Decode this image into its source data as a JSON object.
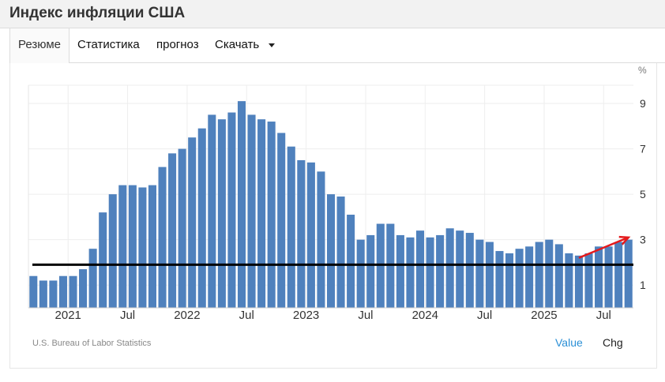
{
  "page": {
    "title": "Индекс инфляции США"
  },
  "tabs": [
    {
      "label": "Резюме",
      "active": true
    },
    {
      "label": "Статистика",
      "active": false
    },
    {
      "label": "прогноз",
      "active": false
    },
    {
      "label": "Скачать",
      "active": false,
      "dropdown": true
    }
  ],
  "footer": {
    "source": "U.S. Bureau of Labor Statistics",
    "value_label": "Value",
    "chg_label": "Chg"
  },
  "colors": {
    "bar": "#4f81bd",
    "reference_line": "#000000",
    "annotation_arrow": "#e41a1c",
    "value_toggle": "#2a8fd6"
  },
  "chart_data": {
    "type": "bar",
    "unit_label": "%",
    "y_axis_side": "right",
    "ylim": [
      0,
      9.8
    ],
    "y_ticks": [
      1,
      3,
      5,
      7,
      9
    ],
    "grid": true,
    "x_tick_labels": [
      {
        "label": "2021",
        "at": "2021-01"
      },
      {
        "label": "Jul",
        "at": "2021-07"
      },
      {
        "label": "2022",
        "at": "2022-01"
      },
      {
        "label": "Jul",
        "at": "2022-07"
      },
      {
        "label": "2023",
        "at": "2023-01"
      },
      {
        "label": "Jul",
        "at": "2023-07"
      },
      {
        "label": "2024",
        "at": "2024-01"
      },
      {
        "label": "Jul",
        "at": "2024-07"
      },
      {
        "label": "2025",
        "at": "2025-01"
      },
      {
        "label": "Jul",
        "at": "2025-07"
      }
    ],
    "categories": [
      "2020-09",
      "2020-10",
      "2020-11",
      "2020-12",
      "2021-01",
      "2021-02",
      "2021-03",
      "2021-04",
      "2021-05",
      "2021-06",
      "2021-07",
      "2021-08",
      "2021-09",
      "2021-10",
      "2021-11",
      "2021-12",
      "2022-01",
      "2022-02",
      "2022-03",
      "2022-04",
      "2022-05",
      "2022-06",
      "2022-07",
      "2022-08",
      "2022-09",
      "2022-10",
      "2022-11",
      "2022-12",
      "2023-01",
      "2023-02",
      "2023-03",
      "2023-04",
      "2023-05",
      "2023-06",
      "2023-07",
      "2023-08",
      "2023-09",
      "2023-10",
      "2023-11",
      "2023-12",
      "2024-01",
      "2024-02",
      "2024-03",
      "2024-04",
      "2024-05",
      "2024-06",
      "2024-07",
      "2024-08",
      "2024-09",
      "2024-10",
      "2024-11",
      "2024-12",
      "2025-01",
      "2025-02",
      "2025-03",
      "2025-04",
      "2025-05",
      "2025-06",
      "2025-07",
      "2025-08",
      "2025-09"
    ],
    "values": [
      1.4,
      1.2,
      1.2,
      1.4,
      1.4,
      1.7,
      2.6,
      4.2,
      5.0,
      5.4,
      5.4,
      5.3,
      5.4,
      6.2,
      6.8,
      7.0,
      7.5,
      7.9,
      8.5,
      8.3,
      8.6,
      9.1,
      8.5,
      8.3,
      8.2,
      7.7,
      7.1,
      6.5,
      6.4,
      6.0,
      5.0,
      4.9,
      4.1,
      3.0,
      3.2,
      3.7,
      3.7,
      3.2,
      3.1,
      3.4,
      3.1,
      3.2,
      3.5,
      3.4,
      3.3,
      3.0,
      2.9,
      2.5,
      2.4,
      2.6,
      2.7,
      2.9,
      3.0,
      2.8,
      2.4,
      2.3,
      2.4,
      2.7,
      2.7,
      2.9,
      3.0
    ],
    "reference_line": 1.9,
    "annotation": {
      "type": "arrow",
      "from": {
        "x": "2025-04",
        "y": 2.2
      },
      "to": {
        "x": "2025-09",
        "y": 3.1
      }
    }
  }
}
